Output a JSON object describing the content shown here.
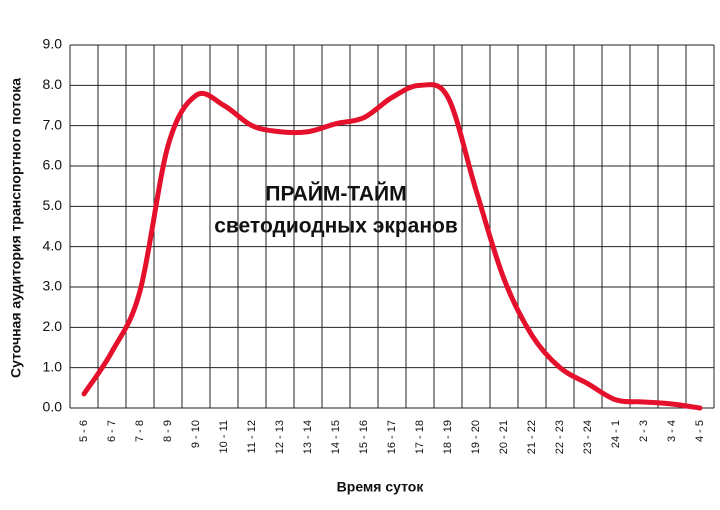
{
  "chart_data": {
    "type": "line",
    "annotation": [
      "ПРАЙМ-ТАЙМ",
      "светодиодных экранов"
    ],
    "x_label": "Время суток",
    "y_label": "Суточная аудитория транспортного потока",
    "categories": [
      "5 - 6",
      "6 - 7",
      "7 - 8",
      "8 - 9",
      "9 - 10",
      "10 - 11",
      "11 - 12",
      "12 - 13",
      "13 - 14",
      "14 - 15",
      "15 - 16",
      "16 - 17",
      "17 - 18",
      "18 - 19",
      "19 - 20",
      "20 - 21",
      "21 - 22",
      "22 - 23",
      "23 - 24",
      "24 - 1",
      "2 - 3",
      "3 - 4",
      "4 - 5"
    ],
    "values": [
      0.35,
      1.4,
      2.9,
      6.5,
      7.75,
      7.5,
      7.0,
      6.85,
      6.85,
      7.05,
      7.2,
      7.7,
      8.0,
      7.7,
      5.4,
      3.2,
      1.8,
      1.0,
      0.6,
      0.2,
      0.15,
      0.1,
      0.0
    ],
    "color": "#e5102b",
    "ylim": [
      0,
      9
    ],
    "yticks": [
      {
        "value": 0,
        "label": "0.0"
      },
      {
        "value": 1,
        "label": "1.0"
      },
      {
        "value": 2,
        "label": "2.0"
      },
      {
        "value": 3,
        "label": "3.0"
      },
      {
        "value": 4,
        "label": "4.0"
      },
      {
        "value": 5,
        "label": "5.0"
      },
      {
        "value": 6,
        "label": "6.0"
      },
      {
        "value": 7,
        "label": "7.0"
      },
      {
        "value": 8,
        "label": "8.0"
      },
      {
        "value": 9,
        "label": "9.0"
      }
    ],
    "grid": true
  }
}
